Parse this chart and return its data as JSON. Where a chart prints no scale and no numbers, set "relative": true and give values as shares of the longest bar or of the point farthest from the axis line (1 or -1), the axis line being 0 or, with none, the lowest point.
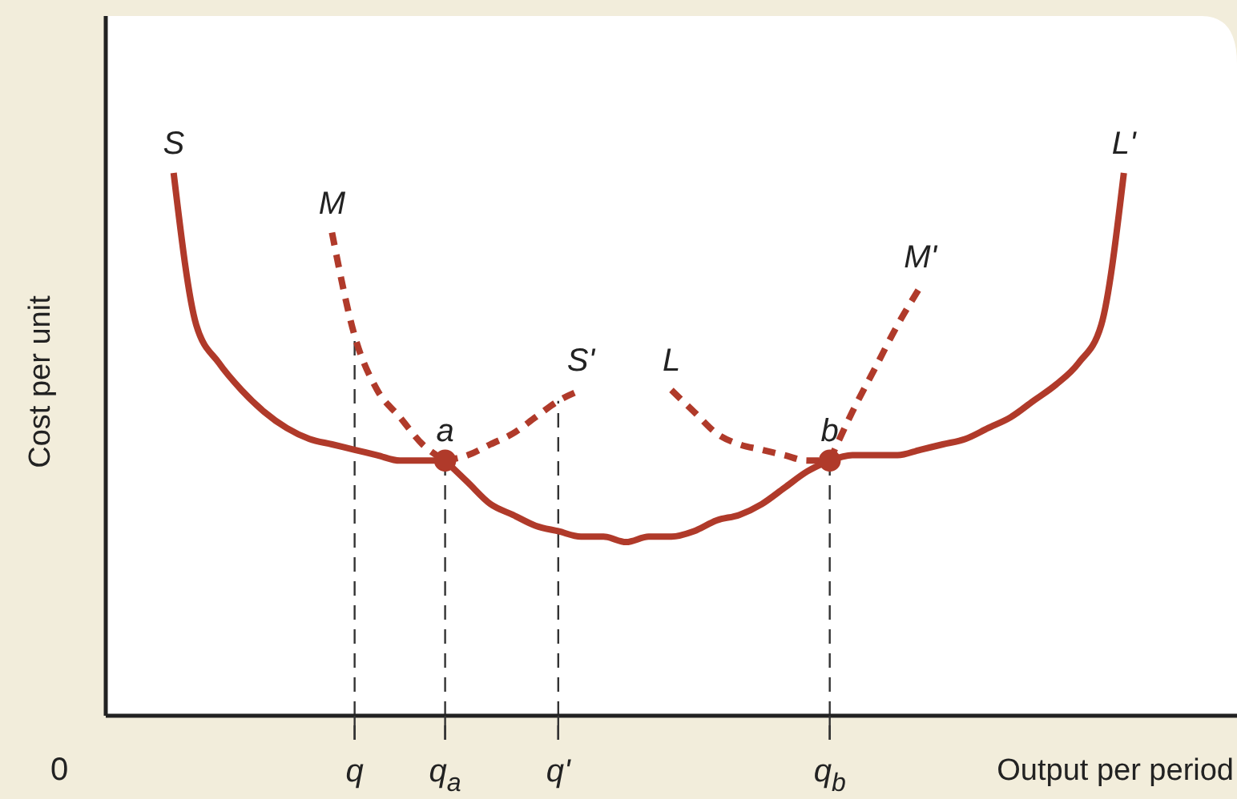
{
  "chart_data": {
    "type": "line",
    "relative": true,
    "ylabel": "Cost per unit",
    "xlabel": "Output per period",
    "categories": [
      null,
      null,
      null,
      null,
      null,
      null,
      null,
      null,
      null,
      null,
      null,
      "q",
      null,
      null,
      null,
      "q$_{a}$",
      null,
      null,
      null,
      null,
      "q'",
      null,
      null,
      null,
      null,
      null,
      null,
      null,
      null,
      null,
      null,
      null,
      "q$_{b}$",
      null,
      null,
      null,
      null,
      null,
      null,
      null,
      null,
      null,
      null,
      null,
      null,
      null,
      null,
      null,
      null,
      null,
      null
    ],
    "tick_labels": "x",
    "grid": false,
    "legend": false,
    "series": [
      {
        "name": "S",
        "color": "#b03a2a",
        "line_style": "solid",
        "values": [
          null,
          null,
          null,
          1.0,
          0.72,
          0.65,
          0.6,
          0.56,
          0.53,
          0.51,
          0.5,
          0.49,
          0.48,
          0.47,
          0.47,
          0.47,
          null,
          null,
          null,
          null,
          null,
          null,
          null,
          null,
          null,
          null,
          null,
          null,
          null,
          null,
          null,
          null,
          null,
          null,
          null,
          null,
          null,
          null,
          null,
          null,
          null,
          null,
          null,
          null,
          null,
          null,
          null,
          null,
          null,
          null,
          null
        ]
      },
      {
        "name": "S'",
        "color": "#b03a2a",
        "line_style": "dashed",
        "values": [
          null,
          null,
          null,
          null,
          null,
          null,
          null,
          null,
          null,
          null,
          null,
          null,
          null,
          null,
          null,
          0.47,
          0.48,
          0.5,
          0.52,
          0.55,
          0.58,
          0.6,
          null,
          null,
          null,
          null,
          null,
          null,
          null,
          null,
          null,
          null,
          null,
          null,
          null,
          null,
          null,
          null,
          null,
          null,
          null,
          null,
          null,
          null,
          null,
          null,
          null,
          null,
          null,
          null,
          null
        ]
      },
      {
        "name": "M",
        "color": "#b03a2a",
        "line_style": "dashed",
        "values": [
          null,
          null,
          null,
          null,
          null,
          null,
          null,
          null,
          null,
          null,
          0.89,
          0.7,
          0.6,
          0.55,
          0.5,
          0.47,
          null,
          null,
          null,
          null,
          null,
          null,
          null,
          null,
          null,
          null,
          null,
          null,
          null,
          null,
          null,
          null,
          null,
          null,
          null,
          null,
          null,
          null,
          null,
          null,
          null,
          null,
          null,
          null,
          null,
          null,
          null,
          null,
          null,
          null,
          null
        ]
      },
      {
        "color": "#b03a2a",
        "line_style": "solid",
        "values": [
          null,
          null,
          null,
          null,
          null,
          null,
          null,
          null,
          null,
          null,
          null,
          null,
          null,
          null,
          null,
          0.47,
          0.43,
          0.39,
          0.37,
          0.35,
          0.34,
          0.33,
          0.33,
          0.32,
          0.33,
          0.33,
          0.34,
          0.36,
          0.37,
          0.39,
          0.42,
          0.45,
          0.47,
          null,
          null,
          null,
          null,
          null,
          null,
          null,
          null,
          null,
          null,
          null,
          null,
          null,
          null,
          null,
          null,
          null,
          null
        ]
      },
      {
        "name": "M'",
        "color": "#b03a2a",
        "line_style": "dashed",
        "values": [
          null,
          null,
          null,
          null,
          null,
          null,
          null,
          null,
          null,
          null,
          null,
          null,
          null,
          null,
          null,
          null,
          null,
          null,
          null,
          null,
          null,
          null,
          null,
          null,
          null,
          null,
          null,
          null,
          null,
          null,
          null,
          null,
          0.47,
          0.56,
          0.64,
          0.72,
          0.79,
          null,
          null,
          null,
          null,
          null,
          null,
          null,
          null,
          null,
          null,
          null,
          null,
          null,
          null
        ]
      },
      {
        "name": "L",
        "color": "#b03a2a",
        "line_style": "dashed",
        "values": [
          null,
          null,
          null,
          null,
          null,
          null,
          null,
          null,
          null,
          null,
          null,
          null,
          null,
          null,
          null,
          null,
          null,
          null,
          null,
          null,
          null,
          null,
          null,
          null,
          null,
          0.6,
          0.56,
          0.52,
          0.5,
          0.49,
          0.48,
          0.47,
          0.47,
          null,
          null,
          null,
          null,
          null,
          null,
          null,
          null,
          null,
          null,
          null,
          null,
          null,
          null,
          null,
          null,
          null,
          null
        ]
      },
      {
        "name": "L'",
        "color": "#b03a2a",
        "line_style": "solid",
        "values": [
          null,
          null,
          null,
          null,
          null,
          null,
          null,
          null,
          null,
          null,
          null,
          null,
          null,
          null,
          null,
          null,
          null,
          null,
          null,
          null,
          null,
          null,
          null,
          null,
          null,
          null,
          null,
          null,
          null,
          null,
          null,
          null,
          0.47,
          0.48,
          0.48,
          0.48,
          0.49,
          0.5,
          0.51,
          0.53,
          0.55,
          0.58,
          0.61,
          0.65,
          0.72,
          1.0,
          null,
          null,
          null,
          null,
          null
        ]
      },
      {
        "name": "a",
        "type": "scatter",
        "marker": "circle",
        "color": "#b03a2a",
        "values": [
          null,
          null,
          null,
          null,
          null,
          null,
          null,
          null,
          null,
          null,
          null,
          null,
          null,
          null,
          null,
          0.47,
          null,
          null,
          null,
          null,
          null,
          null,
          null,
          null,
          null,
          null,
          null,
          null,
          null,
          null,
          null,
          null,
          null,
          null,
          null,
          null,
          null,
          null,
          null,
          null,
          null,
          null,
          null,
          null,
          null,
          null,
          null,
          null,
          null,
          null,
          null
        ]
      },
      {
        "name": "b",
        "type": "scatter",
        "marker": "circle",
        "color": "#b03a2a",
        "values": [
          null,
          null,
          null,
          null,
          null,
          null,
          null,
          null,
          null,
          null,
          null,
          null,
          null,
          null,
          null,
          null,
          null,
          null,
          null,
          null,
          null,
          null,
          null,
          null,
          null,
          null,
          null,
          null,
          null,
          null,
          null,
          null,
          0.47,
          null,
          null,
          null,
          null,
          null,
          null,
          null,
          null,
          null,
          null,
          null,
          null,
          null,
          null,
          null,
          null,
          null,
          null
        ]
      }
    ],
    "ref_lines": [
      {
        "axis": "x",
        "value": "q",
        "color": "#333333",
        "line_style": "dashed"
      },
      {
        "axis": "x",
        "value": "q$_{a}$",
        "color": "#333333",
        "line_style": "dashed"
      },
      {
        "axis": "x",
        "value": "q'",
        "color": "#333333",
        "line_style": "dashed"
      },
      {
        "axis": "x",
        "value": "q$_{b}$",
        "color": "#333333",
        "line_style": "dashed"
      }
    ],
    "annotations": [
      "0"
    ]
  }
}
